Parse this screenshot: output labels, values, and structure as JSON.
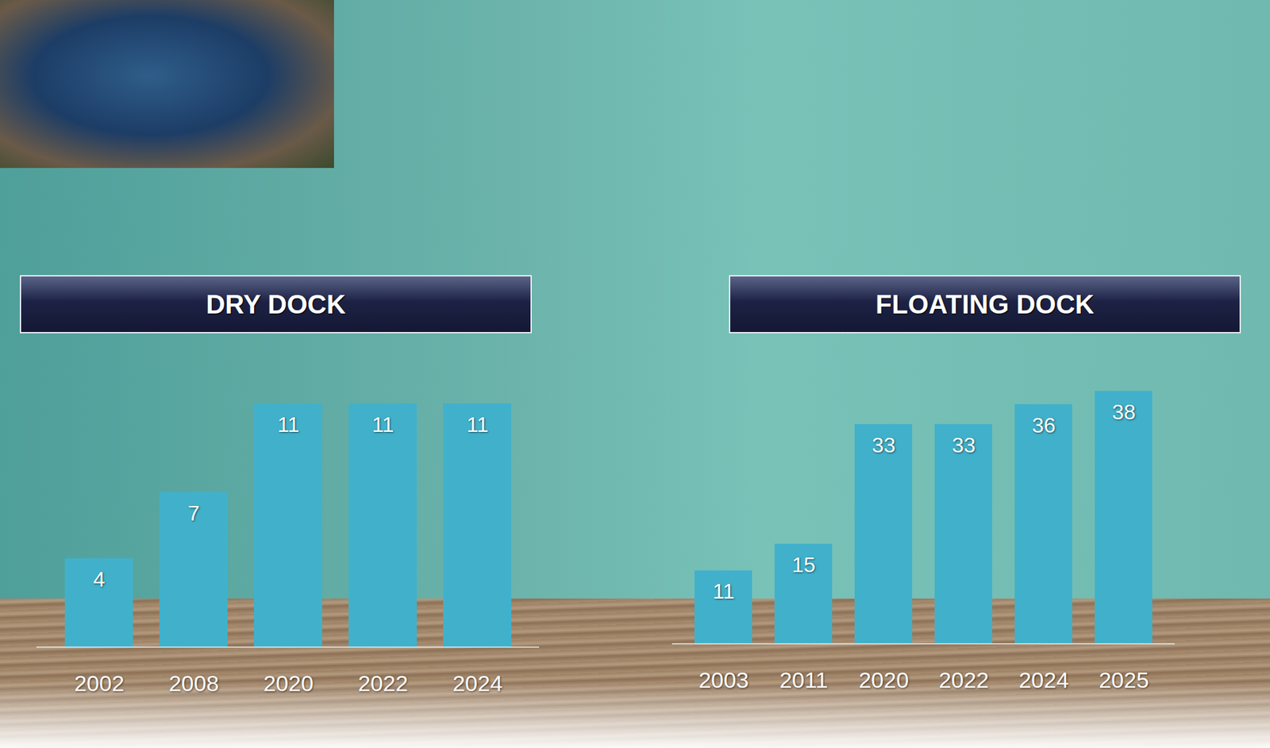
{
  "chart_data": [
    {
      "type": "bar",
      "title": "DRY DOCK",
      "categories": [
        "2002",
        "2008",
        "2020",
        "2022",
        "2024"
      ],
      "values": [
        4,
        7,
        11,
        11,
        11
      ],
      "color": "#41b1cb",
      "data_labels": true,
      "tick_labels": "x"
    },
    {
      "type": "bar",
      "title": "FLOATING DOCK",
      "categories": [
        "2003",
        "2011",
        "2020",
        "2022",
        "2024",
        "2025"
      ],
      "values": [
        11,
        15,
        33,
        33,
        36,
        38
      ],
      "color": "#41b1cb",
      "data_labels": true,
      "tick_labels": "x"
    }
  ]
}
